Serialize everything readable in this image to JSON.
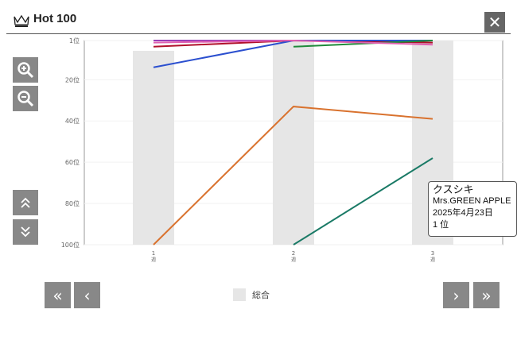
{
  "header": {
    "title": "Hot 100",
    "close_icon": "close-icon",
    "crown_icon": "crown-icon"
  },
  "side_buttons": {
    "zoom_in": "zoom-in-icon",
    "zoom_out": "zoom-out-icon",
    "scroll_up": "double-chevron-up-icon",
    "scroll_down": "double-chevron-down-icon"
  },
  "nav": {
    "first": "«",
    "prev": "‹",
    "next": "›",
    "last": "»"
  },
  "legend": {
    "label": "総合",
    "color": "#e6e6e6"
  },
  "tooltip": {
    "song": "クスシキ",
    "artist": "Mrs.GREEN APPLE",
    "date": "2025年4月23日",
    "rank": "1 位"
  },
  "chart_data": {
    "type": "line",
    "y_axis": {
      "reversed": true,
      "range": [
        1,
        100
      ],
      "ticks": [
        "1位",
        "20位",
        "40位",
        "60位",
        "80位",
        "100位"
      ],
      "tick_values": [
        1,
        20,
        40,
        60,
        80,
        100
      ]
    },
    "x_axis": {
      "ticks": [
        {
          "num": "1",
          "unit": "週"
        },
        {
          "num": "2",
          "unit": "週"
        },
        {
          "num": "3",
          "unit": "週"
        }
      ]
    },
    "bars": {
      "name": "総合",
      "color": "#e6e6e6",
      "values": [
        6,
        1,
        1
      ]
    },
    "series": [
      {
        "color": "#9b3fb8",
        "values": [
          1,
          1,
          1
        ]
      },
      {
        "color": "#b0102a",
        "values": [
          4,
          1,
          2
        ]
      },
      {
        "color": "#2b4fcf",
        "values": [
          14,
          1,
          1
        ]
      },
      {
        "color": "#1f8a3a",
        "values": [
          null,
          4,
          1
        ]
      },
      {
        "color": "#e060b0",
        "values": [
          2,
          1,
          3
        ]
      },
      {
        "color": "#d9722e",
        "values": [
          100,
          33,
          39
        ]
      },
      {
        "color": "#1a7a66",
        "values": [
          null,
          100,
          58
        ]
      }
    ]
  }
}
